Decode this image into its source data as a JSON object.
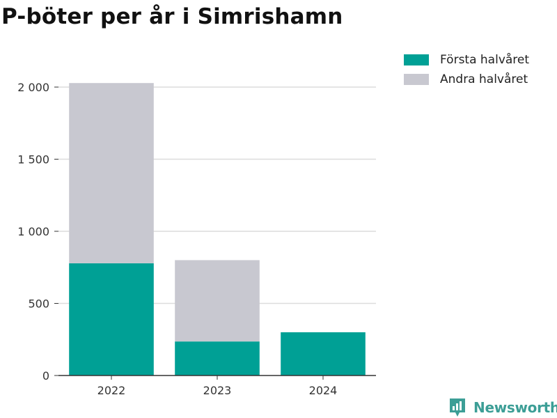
{
  "title": "P-böter per år i Simrishamn",
  "brand": {
    "name": "Newsworthy",
    "icon": "newsworthy-logo-icon",
    "color": "#3c9e96"
  },
  "chart_data": {
    "type": "bar",
    "stacked": true,
    "title": "P-böter per år i Simrishamn",
    "categories": [
      "2022",
      "2023",
      "2024"
    ],
    "series": [
      {
        "name": "Första halvåret",
        "color": "#00a095",
        "values": [
          778,
          236,
          300
        ]
      },
      {
        "name": "Andra halvåret",
        "color": "#c8c8d0",
        "values": [
          1250,
          564,
          0
        ]
      }
    ],
    "xlabel": "",
    "ylabel": "",
    "ylim": [
      0,
      2000
    ],
    "yticks": [
      0,
      500,
      1000,
      1500,
      2000
    ],
    "ytick_labels": [
      "0",
      "500",
      "1 000",
      "1 500",
      "2 000"
    ],
    "grid": true,
    "legend_position": "right"
  }
}
